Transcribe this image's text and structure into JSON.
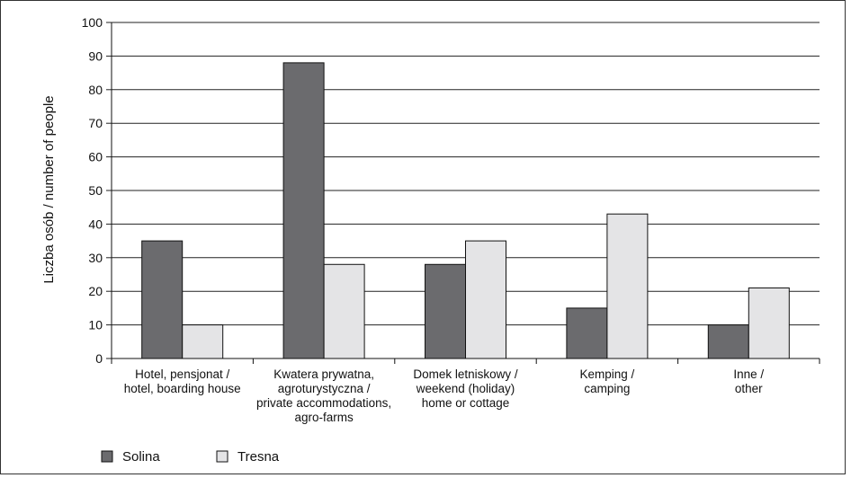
{
  "chart_data": {
    "type": "bar",
    "title": "",
    "xlabel": "",
    "ylabel": "Liczba osób / number of people",
    "ylim": [
      0,
      100
    ],
    "yticks": [
      0,
      10,
      20,
      30,
      40,
      50,
      60,
      70,
      80,
      90,
      100
    ],
    "grid": true,
    "legend_position": "bottom-left",
    "categories": [
      [
        "Hotel, pensjonat /",
        "hotel, boarding house"
      ],
      [
        "Kwatera prywatna,",
        "agroturystyczna /",
        "private accommodations,",
        "agro-farms"
      ],
      [
        "Domek letniskowy /",
        "weekend (holiday)",
        "home or cottage"
      ],
      [
        "Kemping /",
        "camping"
      ],
      [
        "Inne /",
        "other"
      ]
    ],
    "series": [
      {
        "name": "Solina",
        "color": "#6b6b6e",
        "values": [
          35,
          88,
          28,
          15,
          10
        ]
      },
      {
        "name": "Tresna",
        "color": "#e4e4e6",
        "values": [
          10,
          28,
          35,
          43,
          21
        ]
      }
    ]
  }
}
